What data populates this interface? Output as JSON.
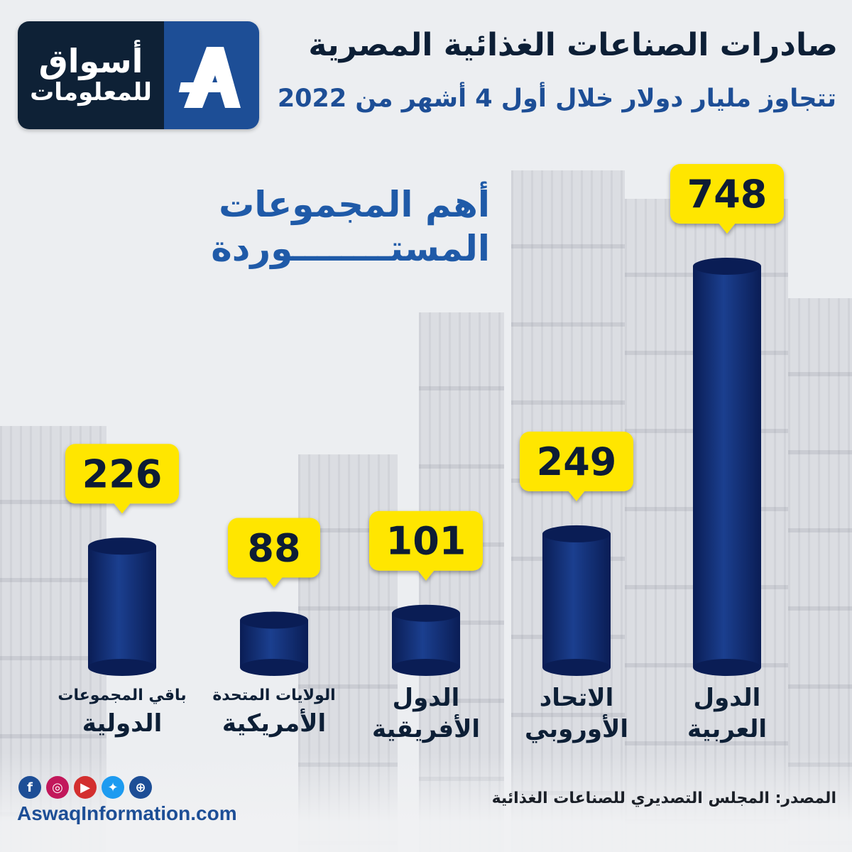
{
  "header": {
    "title": "صادرات الصناعات الغذائية المصرية",
    "subtitle": "تتجاوز مليار دولار خلال أول 4 أشهر من 2022"
  },
  "logo": {
    "line1": "أسواق",
    "line2": "للمعلومات",
    "icon": "aswaq-a-logo"
  },
  "section": {
    "line1": "أهم المجموعات",
    "line2": "المستــــــــوردة"
  },
  "colors": {
    "bar": "#1b3f8f",
    "bar_dark": "#0a1d55",
    "badge": "#ffe600",
    "text_dark": "#0d1f36",
    "accent_blue": "#1f5aa8"
  },
  "chart_data": {
    "type": "bar",
    "categories": [
      {
        "line1": "الدول",
        "line2": "العربية"
      },
      {
        "line1": "الاتحاد",
        "line2": "الأوروبي"
      },
      {
        "line1": "الدول",
        "line2": "الأفريقية"
      },
      {
        "line1": "الولايات المتحدة",
        "line2": "الأمريكية"
      },
      {
        "line1": "باقي المجموعات",
        "line2": "الدولية"
      }
    ],
    "values": [
      748,
      249,
      101,
      88,
      226
    ],
    "value_labels": [
      "748",
      "249",
      "101",
      "88",
      "226"
    ],
    "title": "",
    "xlabel": "",
    "ylabel": "",
    "ylim": [
      0,
      800
    ],
    "grid": false
  },
  "footer": {
    "website": "AswaqInformation.com",
    "source": "المصدر: المجلس التصديري للصناعات الغذائية",
    "social": [
      {
        "name": "facebook-icon",
        "glyph": "f",
        "color": "#1d4e96"
      },
      {
        "name": "instagram-icon",
        "glyph": "◎",
        "color": "#c2185b"
      },
      {
        "name": "youtube-icon",
        "glyph": "▶",
        "color": "#d32f2f"
      },
      {
        "name": "twitter-icon",
        "glyph": "✦",
        "color": "#1d9bf0"
      },
      {
        "name": "globe-icon",
        "glyph": "⊕",
        "color": "#1d4e96"
      }
    ]
  }
}
